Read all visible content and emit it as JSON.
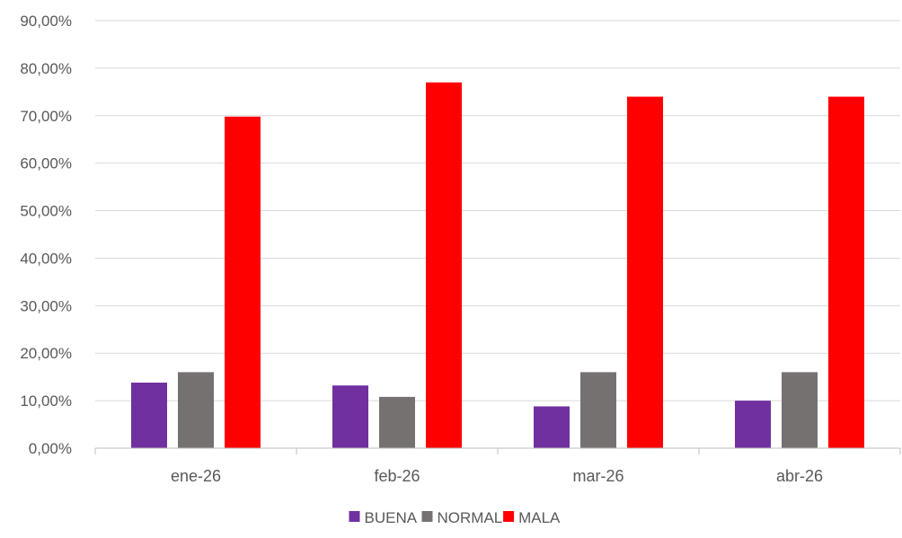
{
  "chart_data": {
    "type": "bar",
    "categories": [
      "ene-26",
      "feb-26",
      "mar-26",
      "abr-26"
    ],
    "series": [
      {
        "name": "BUENA",
        "color": "#7030A0",
        "values": [
          0.138,
          0.132,
          0.088,
          0.1
        ]
      },
      {
        "name": "NORMAL",
        "color": "#767171",
        "values": [
          0.16,
          0.108,
          0.16,
          0.16
        ]
      },
      {
        "name": "MALA",
        "color": "#FF0000",
        "values": [
          0.698,
          0.77,
          0.74,
          0.74
        ]
      }
    ],
    "ylim": [
      0,
      0.9
    ],
    "yticks": [
      0,
      0.1,
      0.2,
      0.3,
      0.4,
      0.5,
      0.6,
      0.7,
      0.8,
      0.9
    ],
    "ytick_labels": [
      "0,00%",
      "10,00%",
      "20,00%",
      "30,00%",
      "40,00%",
      "50,00%",
      "60,00%",
      "70,00%",
      "80,00%",
      "90,00%"
    ],
    "grid": true,
    "legend_position": "bottom",
    "gridline_color": "#D9D9D9",
    "axis_color": "#BFBFBF"
  }
}
